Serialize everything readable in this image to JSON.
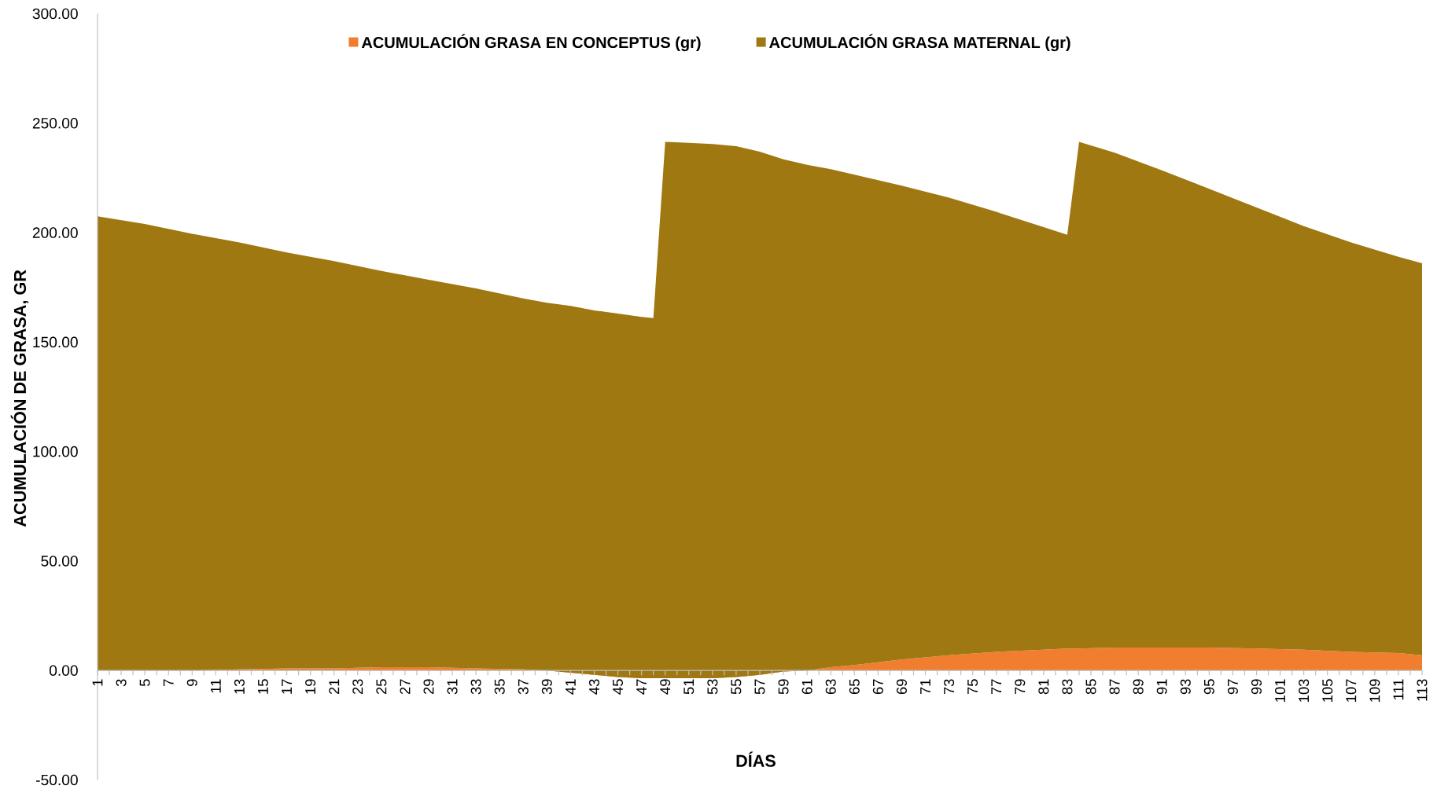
{
  "chart_data": {
    "type": "area",
    "stacked": true,
    "legend": "top",
    "xlabel": "DÍAS",
    "ylabel": "ACUMULACIÓN DE GRASA, GR",
    "x": [
      1,
      5,
      9,
      13,
      17,
      21,
      25,
      29,
      33,
      37,
      39,
      41,
      43,
      45,
      47,
      48,
      49,
      51,
      53,
      55,
      57,
      59,
      61,
      63,
      65,
      69,
      73,
      77,
      81,
      83,
      84,
      87,
      91,
      95,
      99,
      103,
      107,
      111,
      113
    ],
    "xlim": [
      1,
      113
    ],
    "xticks": [
      1,
      {
        "value": 2,
        "label": null
      },
      3,
      {
        "value": 4,
        "label": null
      },
      5,
      {
        "value": 6,
        "label": null
      },
      7,
      {
        "value": 8,
        "label": null
      },
      9,
      {
        "value": 10,
        "label": null
      },
      11,
      {
        "value": 12,
        "label": null
      },
      13,
      {
        "value": 14,
        "label": null
      },
      15,
      {
        "value": 16,
        "label": null
      },
      17,
      {
        "value": 18,
        "label": null
      },
      19,
      {
        "value": 20,
        "label": null
      },
      21,
      {
        "value": 22,
        "label": null
      },
      23,
      {
        "value": 24,
        "label": null
      },
      25,
      {
        "value": 26,
        "label": null
      },
      27,
      {
        "value": 28,
        "label": null
      },
      29,
      {
        "value": 30,
        "label": null
      },
      31,
      {
        "value": 32,
        "label": null
      },
      33,
      {
        "value": 34,
        "label": null
      },
      35,
      {
        "value": 36,
        "label": null
      },
      37,
      {
        "value": 38,
        "label": null
      },
      39,
      {
        "value": 40,
        "label": null
      },
      41,
      {
        "value": 42,
        "label": null
      },
      43,
      {
        "value": 44,
        "label": null
      },
      45,
      {
        "value": 46,
        "label": null
      },
      47,
      {
        "value": 48,
        "label": null
      },
      49,
      {
        "value": 50,
        "label": null
      },
      51,
      {
        "value": 52,
        "label": null
      },
      53,
      {
        "value": 54,
        "label": null
      },
      55,
      {
        "value": 56,
        "label": null
      },
      57,
      {
        "value": 58,
        "label": null
      },
      59,
      {
        "value": 60,
        "label": null
      },
      61,
      {
        "value": 62,
        "label": null
      },
      63,
      {
        "value": 64,
        "label": null
      },
      65,
      {
        "value": 66,
        "label": null
      },
      67,
      {
        "value": 68,
        "label": null
      },
      69,
      {
        "value": 70,
        "label": null
      },
      71,
      {
        "value": 72,
        "label": null
      },
      73,
      {
        "value": 74,
        "label": null
      },
      75,
      {
        "value": 76,
        "label": null
      },
      77,
      {
        "value": 78,
        "label": null
      },
      79,
      {
        "value": 80,
        "label": null
      },
      81,
      {
        "value": 82,
        "label": null
      },
      83,
      {
        "value": 84,
        "label": null
      },
      85,
      {
        "value": 86,
        "label": null
      },
      87,
      {
        "value": 88,
        "label": null
      },
      89,
      {
        "value": 90,
        "label": null
      },
      91,
      {
        "value": 92,
        "label": null
      },
      93,
      {
        "value": 94,
        "label": null
      },
      95,
      {
        "value": 96,
        "label": null
      },
      97,
      {
        "value": 98,
        "label": null
      },
      99,
      {
        "value": 100,
        "label": null
      },
      101,
      {
        "value": 102,
        "label": null
      },
      103,
      {
        "value": 104,
        "label": null
      },
      105,
      {
        "value": 106,
        "label": null
      },
      107,
      {
        "value": 108,
        "label": null
      },
      109,
      {
        "value": 110,
        "label": null
      },
      111,
      {
        "value": 112,
        "label": null
      },
      113
    ],
    "ylim": [
      -50,
      300
    ],
    "yticks": [
      {
        "value": -50,
        "label": "-50.00"
      },
      {
        "value": 0,
        "label": "0.00"
      },
      {
        "value": 50,
        "label": "50.00"
      },
      {
        "value": 100,
        "label": "100.00"
      },
      {
        "value": 150,
        "label": "150.00"
      },
      {
        "value": 200,
        "label": "200.00"
      },
      {
        "value": 250,
        "label": "250.00"
      },
      {
        "value": 300,
        "label": "300.00"
      }
    ],
    "series": [
      {
        "name": "ACUMULACIÓN GRASA EN CONCEPTUS (gr)",
        "color": "#f07e2e",
        "values": [
          0,
          0,
          0,
          0.5,
          1,
          1,
          1.5,
          1.5,
          1,
          0.5,
          0,
          -1,
          -2,
          -3,
          -3.5,
          -3.5,
          -3.5,
          -3.5,
          -3.5,
          -3,
          -2,
          -0.5,
          0,
          1.5,
          2.5,
          5,
          7,
          8.5,
          9.5,
          10,
          10,
          10.5,
          10.5,
          10.5,
          10,
          9.5,
          8.5,
          8,
          7
        ]
      },
      {
        "name": "ACUMULACIÓN GRASA MATERNAL (gr)",
        "color": "#9f7812",
        "values": [
          207.5,
          204,
          199.5,
          195,
          190,
          186,
          181,
          177,
          173.5,
          169.5,
          168,
          167.5,
          166.5,
          166,
          165,
          164.5,
          245,
          244.5,
          244,
          242.5,
          239,
          234,
          231,
          227.5,
          224,
          216.5,
          209,
          201,
          193,
          189,
          231.5,
          226,
          218,
          209.5,
          201.5,
          193.5,
          187,
          181,
          179
        ]
      }
    ]
  }
}
